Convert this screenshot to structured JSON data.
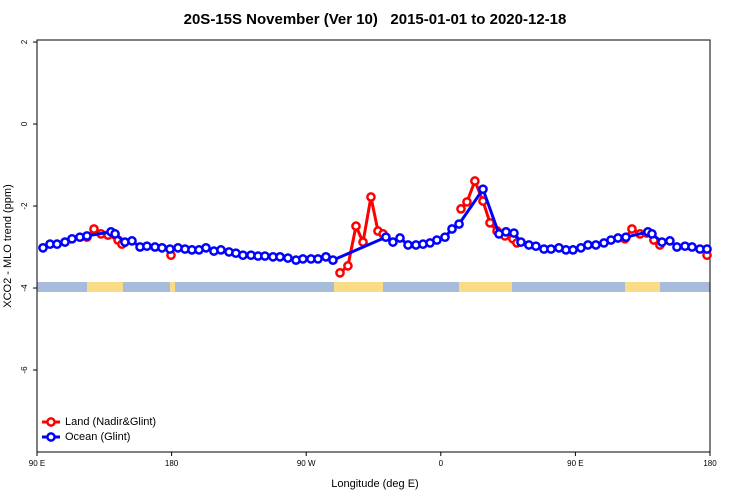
{
  "chart_data": {
    "type": "line",
    "title": "20S-15S November (Ver 10)   2015-01-01 to 2020-12-18",
    "x_label": "Longitude (deg E)",
    "y_label": "XCO2 - MLO trend (ppm)",
    "xlim": [
      90,
      540
    ],
    "xticks": [
      {
        "value": 90,
        "label": "90 E"
      },
      180,
      {
        "value": 270,
        "label": "90 W"
      },
      {
        "value": 360,
        "label": "0"
      },
      {
        "value": 450,
        "label": "90 E"
      },
      {
        "value": 540,
        "label": "180"
      }
    ],
    "ylim": [
      -8,
      2.05
    ],
    "yticks": [
      2,
      0,
      -2,
      -4,
      -6
    ],
    "legend": "bottom-left",
    "series": [
      {
        "name": "Land (Nadir&Glint)",
        "color": "#ff0000",
        "x": [
          123.4,
          128.1,
          132.8,
          137.5,
          144.2,
          146.8,
          null,
          179.6,
          null,
          292.6,
          297.9,
          303.3,
          308.0,
          313.3,
          318.0,
          321.4,
          null,
          373.5,
          377.5,
          382.8,
          388.2,
          392.9,
          397.6,
          402.9,
          408.2,
          410.9,
          null,
          483.1,
          487.8,
          493.2,
          497.8,
          502.5,
          506.5,
          null,
          538.0
        ],
        "values": [
          -2.76,
          -2.56,
          -2.68,
          -2.71,
          -2.83,
          -2.93,
          null,
          -3.2,
          null,
          -3.63,
          -3.46,
          -2.49,
          -2.88,
          -1.78,
          -2.61,
          -2.68,
          null,
          -2.07,
          -1.9,
          -1.39,
          -1.88,
          -2.41,
          -2.61,
          -2.73,
          -2.8,
          -2.9,
          null,
          -2.8,
          -2.56,
          -2.68,
          -2.66,
          -2.83,
          -2.95,
          null,
          -3.2
        ]
      },
      {
        "name": "Ocean (Glint)",
        "color": "#0000ff",
        "x": [
          94.0,
          98.7,
          103.4,
          108.7,
          113.4,
          118.7,
          123.4,
          139.5,
          142.2,
          148.8,
          153.5,
          158.9,
          163.5,
          168.9,
          173.6,
          178.9,
          184.3,
          189.0,
          193.6,
          198.3,
          203.0,
          208.3,
          213.0,
          218.4,
          223.0,
          227.7,
          233.1,
          237.8,
          242.4,
          247.8,
          252.5,
          257.8,
          263.2,
          267.8,
          273.2,
          277.9,
          283.2,
          287.9,
          323.3,
          328.0,
          332.7,
          338.1,
          343.4,
          348.1,
          352.8,
          357.4,
          362.8,
          367.5,
          372.2,
          388.2,
          398.9,
          403.6,
          408.9,
          413.6,
          418.9,
          423.6,
          429.0,
          433.7,
          439.0,
          443.7,
          448.4,
          453.7,
          458.4,
          463.7,
          469.1,
          473.8,
          478.5,
          483.8,
          498.5,
          501.2,
          507.9,
          513.2,
          517.9,
          523.3,
          528.0,
          533.3,
          538.0
        ],
        "values": [
          -3.02,
          -2.93,
          -2.93,
          -2.88,
          -2.8,
          -2.76,
          -2.73,
          -2.63,
          -2.68,
          -2.88,
          -2.85,
          -3.0,
          -2.98,
          -3.0,
          -3.02,
          -3.05,
          -3.02,
          -3.05,
          -3.07,
          -3.07,
          -3.02,
          -3.1,
          -3.07,
          -3.12,
          -3.15,
          -3.2,
          -3.2,
          -3.22,
          -3.22,
          -3.24,
          -3.24,
          -3.27,
          -3.32,
          -3.29,
          -3.29,
          -3.29,
          -3.24,
          -3.32,
          -2.76,
          -2.88,
          -2.78,
          -2.95,
          -2.95,
          -2.93,
          -2.9,
          -2.83,
          -2.76,
          -2.56,
          -2.44,
          -1.59,
          -2.68,
          -2.63,
          -2.66,
          -2.88,
          -2.95,
          -2.98,
          -3.05,
          -3.05,
          -3.02,
          -3.07,
          -3.07,
          -3.02,
          -2.95,
          -2.95,
          -2.9,
          -2.83,
          -2.78,
          -2.76,
          -2.63,
          -2.68,
          -2.88,
          -2.85,
          -3.0,
          -2.98,
          -3.0,
          -3.05,
          -3.05
        ]
      }
    ]
  }
}
